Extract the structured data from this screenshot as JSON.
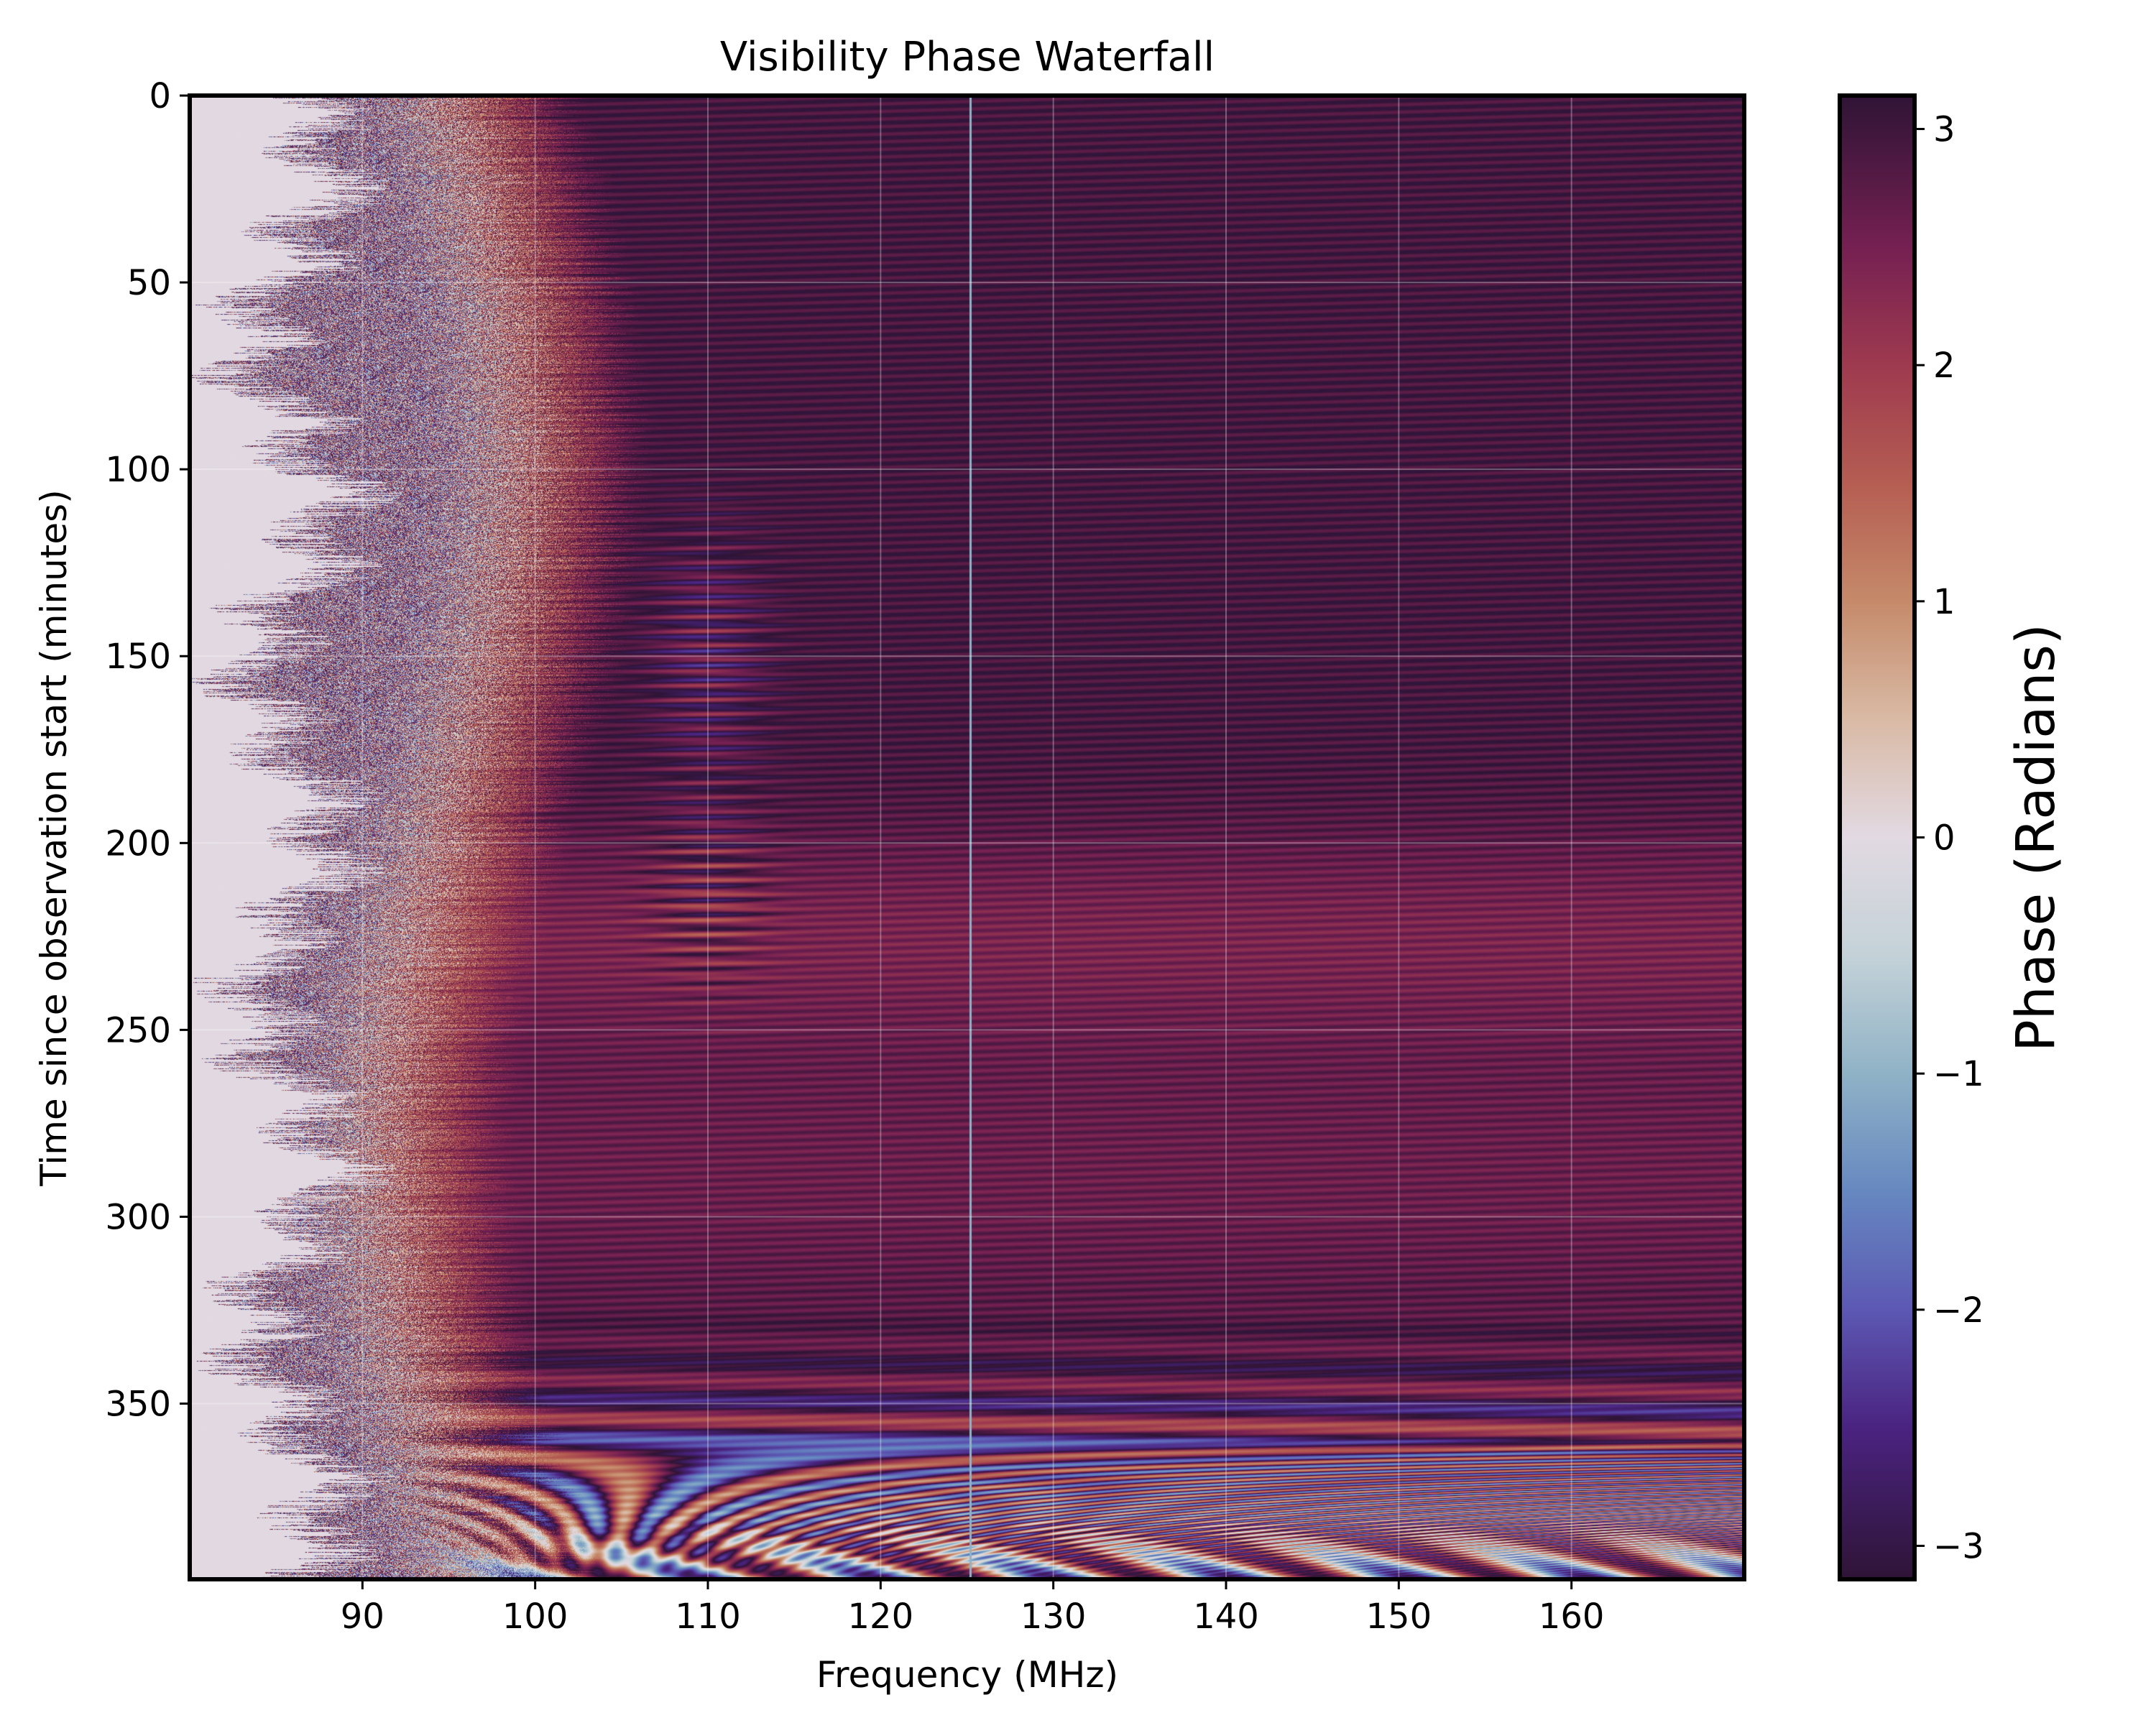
{
  "chart_data": {
    "type": "heatmap",
    "title": "Visibility Phase Waterfall",
    "xlabel": "Frequency (MHz)",
    "ylabel": "Time since observation start (minutes)",
    "xlim": [
      80,
      170
    ],
    "ylim": [
      397,
      0
    ],
    "x_ticks": [
      90,
      100,
      110,
      120,
      130,
      140,
      150,
      160
    ],
    "x_tick_labels": [
      "90",
      "100",
      "110",
      "120",
      "130",
      "140",
      "150",
      "160"
    ],
    "y_ticks": [
      0,
      50,
      100,
      150,
      200,
      250,
      300,
      350
    ],
    "y_tick_labels": [
      "0",
      "50",
      "100",
      "150",
      "200",
      "250",
      "300",
      "350"
    ],
    "grid": true,
    "colorbar": {
      "label": "Phase (Radians)",
      "range": [
        -3.14159,
        3.14159
      ],
      "ticks": [
        3,
        2,
        1,
        0,
        -1,
        -2,
        -3
      ],
      "tick_labels": [
        "3",
        "2",
        "1",
        "0",
        "−1",
        "−2",
        "−3"
      ],
      "colormap": "twilight_shifted",
      "color_stops": [
        {
          "value": -3.14159,
          "color": "#2f1436"
        },
        {
          "value": -2.5,
          "color": "#4a2380"
        },
        {
          "value": -2.0,
          "color": "#5c58b3"
        },
        {
          "value": -1.5,
          "color": "#6688c0"
        },
        {
          "value": -1.0,
          "color": "#90b2c6"
        },
        {
          "value": -0.5,
          "color": "#c4d2d8"
        },
        {
          "value": 0.0,
          "color": "#e2d9e2"
        },
        {
          "value": 0.5,
          "color": "#d9baa5"
        },
        {
          "value": 1.0,
          "color": "#c58a6a"
        },
        {
          "value": 1.5,
          "color": "#b55d52"
        },
        {
          "value": 2.0,
          "color": "#9e3a4f"
        },
        {
          "value": 2.5,
          "color": "#752052"
        },
        {
          "value": 3.14159,
          "color": "#2f1436"
        }
      ]
    },
    "features": {
      "rfi_line_mhz": 125.2,
      "low_freq_noise_edge_mhz": 86,
      "fringe_rows_start_min": 320
    }
  }
}
